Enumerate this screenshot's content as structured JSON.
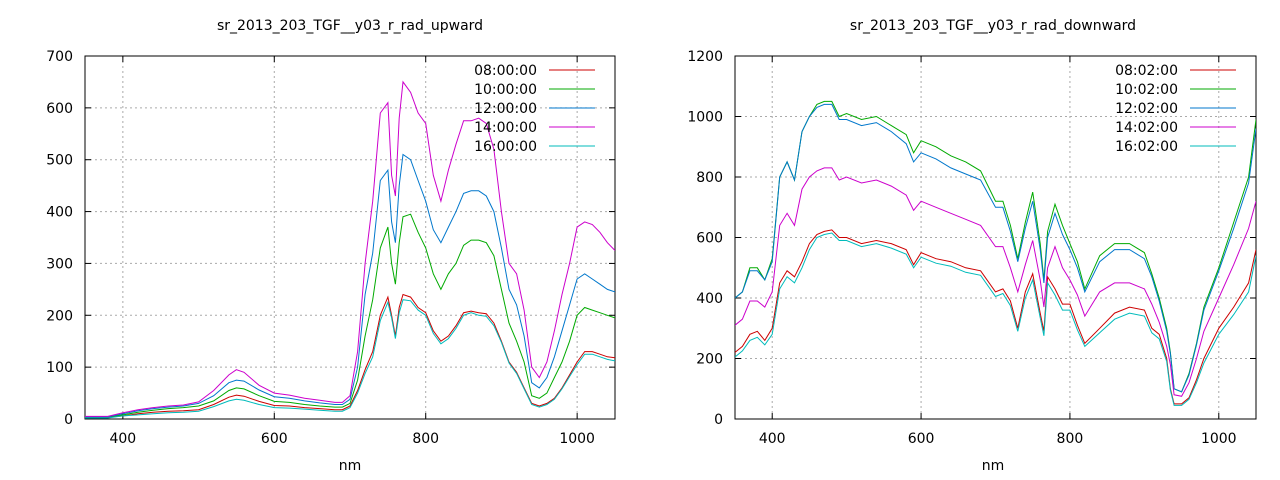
{
  "chart_data": [
    {
      "type": "line",
      "title": "sr_2013_203_TGF__y03_r_rad_upward",
      "xlabel": "nm",
      "ylabel": "",
      "xlim": [
        350,
        1050
      ],
      "ylim": [
        0,
        700
      ],
      "xticks": [
        400,
        600,
        800,
        1000
      ],
      "yticks": [
        0,
        100,
        200,
        300,
        400,
        500,
        600,
        700
      ],
      "grid": true,
      "legend": "top-right",
      "x": [
        350,
        380,
        400,
        420,
        440,
        460,
        480,
        500,
        520,
        540,
        550,
        560,
        580,
        600,
        620,
        640,
        660,
        680,
        690,
        700,
        710,
        720,
        730,
        740,
        750,
        755,
        760,
        765,
        770,
        780,
        790,
        800,
        810,
        820,
        830,
        840,
        850,
        860,
        870,
        880,
        890,
        900,
        910,
        920,
        930,
        940,
        950,
        960,
        970,
        980,
        990,
        1000,
        1010,
        1020,
        1030,
        1040,
        1050
      ],
      "series": [
        {
          "name": "08:00:00",
          "color": "#cc0000",
          "values": [
            3,
            3,
            6,
            10,
            13,
            15,
            16,
            18,
            28,
            42,
            46,
            44,
            34,
            26,
            25,
            22,
            20,
            18,
            18,
            25,
            55,
            95,
            130,
            200,
            235,
            200,
            160,
            215,
            240,
            235,
            215,
            205,
            170,
            150,
            160,
            180,
            205,
            208,
            205,
            203,
            185,
            150,
            110,
            90,
            60,
            30,
            25,
            30,
            40,
            60,
            85,
            110,
            130,
            130,
            125,
            120,
            118
          ]
        },
        {
          "name": "10:00:00",
          "color": "#00aa00",
          "values": [
            4,
            4,
            8,
            13,
            17,
            20,
            22,
            25,
            35,
            55,
            60,
            58,
            45,
            34,
            32,
            28,
            25,
            23,
            23,
            30,
            75,
            160,
            230,
            330,
            370,
            300,
            260,
            340,
            390,
            395,
            360,
            330,
            280,
            250,
            280,
            300,
            335,
            345,
            345,
            340,
            315,
            250,
            185,
            150,
            110,
            45,
            40,
            50,
            80,
            110,
            150,
            200,
            215,
            210,
            205,
            200,
            195
          ]
        },
        {
          "name": "12:00:00",
          "color": "#0077cc",
          "values": [
            4,
            4,
            10,
            16,
            20,
            23,
            25,
            30,
            45,
            70,
            75,
            73,
            56,
            43,
            40,
            35,
            31,
            28,
            28,
            38,
            100,
            240,
            320,
            460,
            480,
            380,
            340,
            450,
            510,
            500,
            460,
            420,
            365,
            340,
            370,
            400,
            435,
            440,
            440,
            430,
            400,
            330,
            250,
            220,
            160,
            70,
            60,
            80,
            120,
            170,
            220,
            270,
            280,
            270,
            260,
            250,
            245
          ]
        },
        {
          "name": "14:00:00",
          "color": "#cc00cc",
          "values": [
            5,
            5,
            12,
            18,
            22,
            25,
            27,
            33,
            55,
            85,
            95,
            90,
            65,
            50,
            46,
            40,
            36,
            32,
            32,
            45,
            130,
            300,
            420,
            590,
            610,
            470,
            430,
            580,
            650,
            630,
            590,
            570,
            470,
            420,
            480,
            530,
            575,
            575,
            580,
            570,
            520,
            400,
            300,
            280,
            210,
            100,
            80,
            110,
            170,
            240,
            300,
            370,
            380,
            375,
            360,
            340,
            325
          ]
        },
        {
          "name": "16:00:00",
          "color": "#00bbbb",
          "values": [
            2,
            2,
            6,
            8,
            10,
            12,
            13,
            15,
            24,
            35,
            38,
            36,
            28,
            22,
            21,
            19,
            17,
            15,
            15,
            22,
            50,
            88,
            120,
            190,
            225,
            195,
            155,
            205,
            230,
            228,
            210,
            200,
            165,
            145,
            155,
            175,
            200,
            205,
            200,
            198,
            180,
            148,
            108,
            88,
            58,
            28,
            23,
            28,
            38,
            58,
            82,
            105,
            125,
            125,
            120,
            115,
            112
          ]
        }
      ]
    },
    {
      "type": "line",
      "title": "sr_2013_203_TGF__y03_r_rad_downward",
      "xlabel": "nm",
      "ylabel": "",
      "xlim": [
        350,
        1050
      ],
      "ylim": [
        0,
        1200
      ],
      "xticks": [
        400,
        600,
        800,
        1000
      ],
      "yticks": [
        0,
        200,
        400,
        600,
        800,
        1000,
        1200
      ],
      "grid": true,
      "legend": "top-right",
      "x": [
        350,
        360,
        370,
        380,
        390,
        400,
        410,
        420,
        430,
        440,
        450,
        460,
        470,
        480,
        490,
        500,
        520,
        540,
        560,
        580,
        590,
        600,
        620,
        640,
        660,
        680,
        700,
        710,
        720,
        730,
        740,
        750,
        760,
        765,
        770,
        780,
        790,
        800,
        810,
        820,
        840,
        860,
        880,
        900,
        910,
        920,
        930,
        935,
        940,
        950,
        960,
        970,
        980,
        1000,
        1020,
        1040,
        1050
      ],
      "series": [
        {
          "name": "08:02:00",
          "color": "#cc0000",
          "values": [
            220,
            240,
            280,
            290,
            260,
            300,
            450,
            490,
            470,
            520,
            580,
            610,
            620,
            625,
            600,
            600,
            580,
            590,
            580,
            560,
            510,
            550,
            530,
            520,
            500,
            490,
            420,
            430,
            390,
            300,
            420,
            480,
            350,
            290,
            470,
            430,
            380,
            380,
            310,
            250,
            300,
            350,
            370,
            360,
            300,
            280,
            200,
            100,
            50,
            50,
            70,
            130,
            200,
            300,
            370,
            450,
            560
          ]
        },
        {
          "name": "10:02:00",
          "color": "#00aa00",
          "values": [
            400,
            420,
            500,
            500,
            460,
            530,
            800,
            850,
            790,
            950,
            1000,
            1040,
            1050,
            1050,
            1000,
            1010,
            990,
            1000,
            970,
            940,
            880,
            920,
            900,
            870,
            850,
            820,
            720,
            720,
            640,
            530,
            650,
            750,
            580,
            460,
            620,
            710,
            640,
            580,
            520,
            430,
            540,
            580,
            580,
            550,
            480,
            400,
            300,
            220,
            100,
            90,
            150,
            250,
            370,
            500,
            650,
            800,
            990
          ]
        },
        {
          "name": "12:02:00",
          "color": "#0077cc",
          "values": [
            400,
            420,
            490,
            490,
            460,
            520,
            800,
            850,
            790,
            950,
            1000,
            1030,
            1040,
            1040,
            990,
            990,
            970,
            980,
            950,
            910,
            850,
            880,
            860,
            830,
            810,
            790,
            700,
            700,
            620,
            520,
            630,
            720,
            560,
            450,
            600,
            680,
            610,
            560,
            500,
            420,
            520,
            560,
            560,
            530,
            470,
            390,
            290,
            215,
            100,
            90,
            145,
            245,
            360,
            490,
            630,
            780,
            960
          ]
        },
        {
          "name": "14:02:00",
          "color": "#cc00cc",
          "values": [
            310,
            330,
            390,
            390,
            370,
            420,
            640,
            680,
            640,
            760,
            800,
            820,
            830,
            830,
            790,
            800,
            780,
            790,
            770,
            740,
            690,
            720,
            700,
            680,
            660,
            640,
            570,
            570,
            500,
            420,
            510,
            590,
            460,
            370,
            500,
            570,
            500,
            460,
            410,
            340,
            420,
            450,
            450,
            430,
            380,
            320,
            240,
            180,
            80,
            75,
            120,
            200,
            290,
            400,
            510,
            630,
            720
          ]
        },
        {
          "name": "16:02:00",
          "color": "#00bbbb",
          "values": [
            205,
            225,
            260,
            270,
            245,
            280,
            430,
            470,
            450,
            500,
            560,
            600,
            610,
            615,
            590,
            590,
            570,
            580,
            565,
            545,
            500,
            535,
            515,
            505,
            485,
            475,
            405,
            415,
            375,
            290,
            400,
            460,
            335,
            275,
            450,
            410,
            360,
            360,
            295,
            240,
            285,
            330,
            350,
            340,
            285,
            265,
            190,
            95,
            45,
            45,
            65,
            120,
            185,
            280,
            345,
            420,
            540
          ]
        }
      ]
    }
  ]
}
